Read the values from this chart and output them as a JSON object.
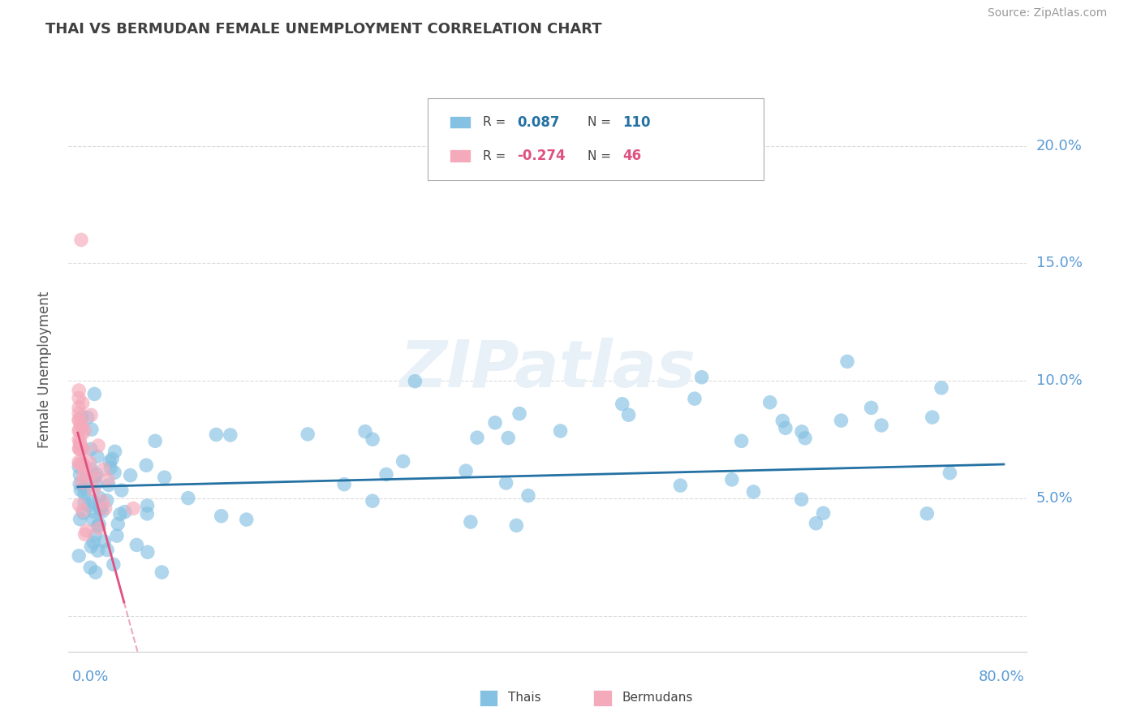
{
  "title": "THAI VS BERMUDAN FEMALE UNEMPLOYMENT CORRELATION CHART",
  "source": "Source: ZipAtlas.com",
  "ylabel": "Female Unemployment",
  "ytick_vals": [
    0.0,
    0.05,
    0.1,
    0.15,
    0.2
  ],
  "ytick_labels": [
    "",
    "5.0%",
    "10.0%",
    "15.0%",
    "20.0%"
  ],
  "xlim": [
    -0.008,
    0.82
  ],
  "ylim": [
    -0.015,
    0.225
  ],
  "thai_R": 0.087,
  "thai_N": 110,
  "bermudan_R": -0.274,
  "bermudan_N": 46,
  "thai_color": "#85c1e2",
  "bermudan_color": "#f5aabb",
  "trendline_thai_color": "#2471a3",
  "trendline_bermudan_color": "#e05080",
  "watermark_color": "#e8f0f8",
  "background_color": "#ffffff",
  "grid_color": "#cccccc",
  "axis_label_color": "#5b9bd5",
  "title_color": "#404040",
  "ylabel_color": "#555555",
  "source_color": "#999999",
  "legend_thai_r": "0.087",
  "legend_thai_n": "110",
  "legend_berm_r": "-0.274",
  "legend_berm_n": "46",
  "legend_value_color_thai": "#2471a3",
  "legend_value_color_berm": "#e05080"
}
